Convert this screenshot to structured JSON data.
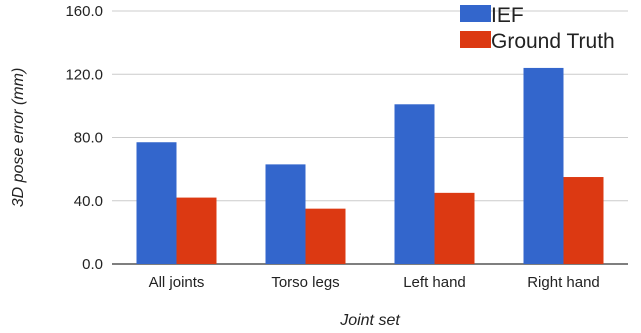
{
  "chart_data": {
    "type": "bar",
    "xlabel": "Joint set",
    "ylabel": "3D pose error (mm)",
    "ylim": [
      0,
      160
    ],
    "yticks": [
      0,
      40,
      80,
      120,
      160
    ],
    "ytick_labels": [
      "0.0",
      "40.0",
      "80.0",
      "120.0",
      "160.0"
    ],
    "grid": true,
    "legend_position": "top-right",
    "categories": [
      "All joints",
      "Torso legs",
      "Left hand",
      "Right hand"
    ],
    "series": [
      {
        "name": "IEF",
        "color": "#3366cc",
        "values": [
          77,
          63,
          101,
          124
        ]
      },
      {
        "name": "Ground Truth",
        "color": "#dc3912",
        "values": [
          42,
          35,
          45,
          55
        ]
      }
    ]
  }
}
